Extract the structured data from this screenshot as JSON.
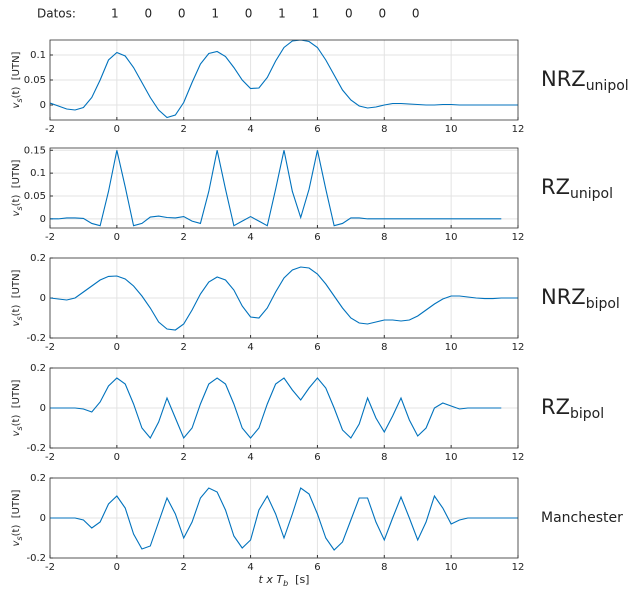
{
  "header": {
    "label": "Datos:",
    "bits": [
      1,
      0,
      0,
      1,
      0,
      1,
      1,
      0,
      0,
      0
    ]
  },
  "chart_data": [
    {
      "type": "line",
      "label": {
        "main": "NRZ",
        "sub": "unipol"
      },
      "ylabel": [
        "v",
        "s",
        "(t)  [UTN]"
      ],
      "color": "#0072BD",
      "grid": true,
      "xlim": [
        -2,
        12
      ],
      "xticks": [
        -2,
        0,
        2,
        4,
        6,
        8,
        10,
        12
      ],
      "ylim": [
        -0.03,
        0.13
      ],
      "yticks": [
        0,
        0.05,
        0.1
      ],
      "x": [
        -2,
        -1.75,
        -1.5,
        -1.25,
        -1,
        -0.75,
        -0.5,
        -0.25,
        0,
        0.25,
        0.5,
        0.75,
        1,
        1.25,
        1.5,
        1.75,
        2,
        2.25,
        2.5,
        2.75,
        3,
        3.25,
        3.5,
        3.75,
        4,
        4.25,
        4.5,
        4.75,
        5,
        5.25,
        5.5,
        5.75,
        6,
        6.25,
        6.5,
        6.75,
        7,
        7.25,
        7.5,
        7.75,
        8,
        8.25,
        8.5,
        8.75,
        9,
        9.25,
        9.5,
        9.75,
        10,
        10.25,
        10.5,
        10.75,
        11,
        11.25,
        11.5,
        11.75,
        12
      ],
      "values": [
        0.004,
        -0.002,
        -0.008,
        -0.01,
        -0.005,
        0.015,
        0.05,
        0.09,
        0.105,
        0.098,
        0.075,
        0.045,
        0.015,
        -0.01,
        -0.025,
        -0.02,
        0.005,
        0.045,
        0.082,
        0.103,
        0.107,
        0.097,
        0.075,
        0.05,
        0.033,
        0.034,
        0.055,
        0.088,
        0.115,
        0.128,
        0.13,
        0.127,
        0.115,
        0.09,
        0.06,
        0.03,
        0.01,
        -0.002,
        -0.006,
        -0.004,
        0,
        0.003,
        0.003,
        0.002,
        0.001,
        0,
        0,
        0.001,
        0.001,
        0,
        0,
        0,
        0,
        0,
        0,
        0,
        0
      ]
    },
    {
      "type": "line",
      "label": {
        "main": "RZ",
        "sub": "unipol"
      },
      "ylabel": [
        "v",
        "s",
        "(t)  [UTN]"
      ],
      "color": "#0072BD",
      "grid": true,
      "xlim": [
        -2,
        12
      ],
      "xticks": [
        -2,
        0,
        2,
        4,
        6,
        8,
        10,
        12
      ],
      "ylim": [
        -0.02,
        0.155
      ],
      "yticks": [
        0,
        0.05,
        0.1,
        0.15
      ],
      "x": [
        -2,
        -1.75,
        -1.5,
        -1.25,
        -1,
        -0.75,
        -0.5,
        -0.25,
        0,
        0.25,
        0.5,
        0.75,
        1,
        1.25,
        1.5,
        1.75,
        2,
        2.25,
        2.5,
        2.75,
        3,
        3.25,
        3.5,
        3.75,
        4,
        4.25,
        4.5,
        4.75,
        5,
        5.25,
        5.5,
        5.75,
        6,
        6.25,
        6.5,
        6.75,
        7,
        7.25,
        7.5,
        7.75,
        8,
        8.25,
        8.5,
        8.75,
        9,
        9.25,
        9.5,
        9.75,
        10,
        10.25,
        10.5,
        10.75,
        11,
        11.25,
        11.5,
        11.75,
        12
      ],
      "values": [
        0,
        0,
        0.002,
        0.002,
        0.001,
        -0.01,
        -0.015,
        0.06,
        0.15,
        0.07,
        -0.015,
        -0.01,
        0.004,
        0.006,
        0.003,
        0.002,
        0.005,
        -0.005,
        -0.01,
        0.06,
        0.15,
        0.065,
        -0.015,
        -0.005,
        0.005,
        -0.005,
        -0.015,
        0.065,
        0.15,
        0.06,
        0.003,
        0.065,
        0.15,
        0.065,
        -0.015,
        -0.01,
        0.002,
        0.002,
        0,
        0,
        0,
        0,
        0,
        0,
        0,
        0,
        0,
        0,
        0,
        0,
        0,
        0,
        0,
        0,
        0,
        null,
        null
      ]
    },
    {
      "type": "line",
      "label": {
        "main": "NRZ",
        "sub": "bipol"
      },
      "ylabel": [
        "v",
        "s",
        "(t)  [UTN]"
      ],
      "color": "#0072BD",
      "grid": true,
      "xlim": [
        -2,
        12
      ],
      "xticks": [
        -2,
        0,
        2,
        4,
        6,
        8,
        10,
        12
      ],
      "ylim": [
        -0.2,
        0.2
      ],
      "yticks": [
        -0.2,
        0,
        0.2
      ],
      "x": [
        -2,
        -1.75,
        -1.5,
        -1.25,
        -1,
        -0.75,
        -0.5,
        -0.25,
        0,
        0.25,
        0.5,
        0.75,
        1,
        1.25,
        1.5,
        1.75,
        2,
        2.25,
        2.5,
        2.75,
        3,
        3.25,
        3.5,
        3.75,
        4,
        4.25,
        4.5,
        4.75,
        5,
        5.25,
        5.5,
        5.75,
        6,
        6.25,
        6.5,
        6.75,
        7,
        7.25,
        7.5,
        7.75,
        8,
        8.25,
        8.5,
        8.75,
        9,
        9.25,
        9.5,
        9.75,
        10,
        10.25,
        10.5,
        10.75,
        11,
        11.25,
        11.5,
        11.75,
        12
      ],
      "values": [
        0,
        -0.005,
        -0.01,
        0,
        0.03,
        0.06,
        0.09,
        0.108,
        0.11,
        0.095,
        0.06,
        0.01,
        -0.05,
        -0.12,
        -0.155,
        -0.16,
        -0.13,
        -0.06,
        0.02,
        0.08,
        0.105,
        0.09,
        0.04,
        -0.04,
        -0.095,
        -0.1,
        -0.05,
        0.03,
        0.1,
        0.14,
        0.155,
        0.15,
        0.12,
        0.07,
        0.01,
        -0.05,
        -0.1,
        -0.125,
        -0.13,
        -0.12,
        -0.11,
        -0.11,
        -0.115,
        -0.11,
        -0.09,
        -0.06,
        -0.03,
        -0.005,
        0.01,
        0.01,
        0.005,
        0,
        -0.003,
        -0.003,
        0,
        0,
        0
      ]
    },
    {
      "type": "line",
      "label": {
        "main": "RZ",
        "sub": "bipol"
      },
      "ylabel": [
        "v",
        "s",
        "(t)  [UTN]"
      ],
      "color": "#0072BD",
      "grid": true,
      "xlim": [
        -2,
        12
      ],
      "xticks": [
        -2,
        0,
        2,
        4,
        6,
        8,
        10,
        12
      ],
      "ylim": [
        -0.2,
        0.2
      ],
      "yticks": [
        -0.2,
        0,
        0.2
      ],
      "x": [
        -2,
        -1.75,
        -1.5,
        -1.25,
        -1,
        -0.75,
        -0.5,
        -0.25,
        0,
        0.25,
        0.5,
        0.75,
        1,
        1.25,
        1.5,
        1.75,
        2,
        2.25,
        2.5,
        2.75,
        3,
        3.25,
        3.5,
        3.75,
        4,
        4.25,
        4.5,
        4.75,
        5,
        5.25,
        5.5,
        5.75,
        6,
        6.25,
        6.5,
        6.75,
        7,
        7.25,
        7.5,
        7.75,
        8,
        8.25,
        8.5,
        8.75,
        9,
        9.25,
        9.5,
        9.75,
        10,
        10.25,
        10.5,
        10.75,
        11,
        11.25,
        11.5,
        11.75,
        12
      ],
      "values": [
        0,
        0,
        0,
        0,
        -0.005,
        -0.02,
        0.03,
        0.11,
        0.15,
        0.12,
        0.02,
        -0.1,
        -0.15,
        -0.07,
        0.05,
        -0.05,
        -0.15,
        -0.1,
        0.02,
        0.12,
        0.15,
        0.12,
        0.02,
        -0.1,
        -0.15,
        -0.1,
        0.02,
        0.12,
        0.15,
        0.09,
        0.04,
        0.1,
        0.15,
        0.1,
        0,
        -0.11,
        -0.15,
        -0.08,
        0.05,
        -0.05,
        -0.12,
        -0.04,
        0.05,
        -0.06,
        -0.14,
        -0.1,
        0,
        0.025,
        0.01,
        -0.005,
        0,
        0,
        0,
        0,
        0,
        null,
        null
      ]
    },
    {
      "type": "line",
      "label": {
        "main": "Manchester"
      },
      "ylabel": [
        "v",
        "s",
        "(t)  [UTN]"
      ],
      "xlabel": [
        "t x T",
        "b",
        "  [s]"
      ],
      "color": "#0072BD",
      "grid": true,
      "xlim": [
        -2,
        12
      ],
      "xticks": [
        -2,
        0,
        2,
        4,
        6,
        8,
        10,
        12
      ],
      "ylim": [
        -0.2,
        0.2
      ],
      "yticks": [
        -0.2,
        0,
        0.2
      ],
      "x": [
        -2,
        -1.75,
        -1.5,
        -1.25,
        -1,
        -0.75,
        -0.5,
        -0.25,
        0,
        0.25,
        0.5,
        0.75,
        1,
        1.25,
        1.5,
        1.75,
        2,
        2.25,
        2.5,
        2.75,
        3,
        3.25,
        3.5,
        3.75,
        4,
        4.25,
        4.5,
        4.75,
        5,
        5.25,
        5.5,
        5.75,
        6,
        6.25,
        6.5,
        6.75,
        7,
        7.25,
        7.5,
        7.75,
        8,
        8.25,
        8.5,
        8.75,
        9,
        9.25,
        9.5,
        9.75,
        10,
        10.25,
        10.5,
        10.75,
        11,
        11.25,
        11.5,
        11.75,
        12
      ],
      "values": [
        0,
        0,
        0,
        0,
        -0.01,
        -0.05,
        -0.02,
        0.07,
        0.11,
        0.05,
        -0.08,
        -0.155,
        -0.14,
        -0.02,
        0.1,
        0.02,
        -0.1,
        -0.02,
        0.1,
        0.15,
        0.13,
        0.04,
        -0.09,
        -0.15,
        -0.11,
        0.04,
        0.11,
        0.02,
        -0.1,
        0.02,
        0.15,
        0.12,
        0.02,
        -0.1,
        -0.16,
        -0.12,
        -0.01,
        0.1,
        0.1,
        -0.02,
        -0.11,
        0,
        0.105,
        0,
        -0.11,
        -0.02,
        0.11,
        0.05,
        -0.03,
        -0.01,
        0,
        0,
        0,
        0,
        0,
        0,
        0
      ]
    }
  ]
}
